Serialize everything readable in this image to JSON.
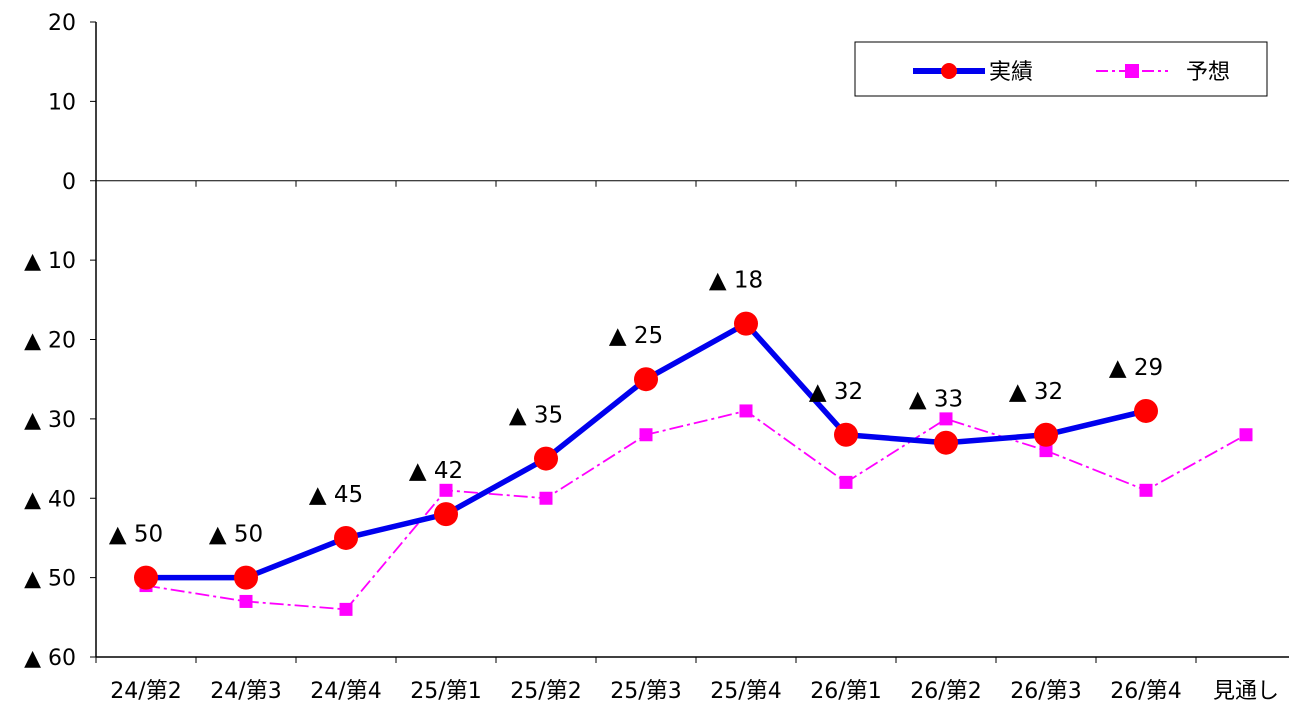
{
  "chart_data": {
    "type": "line",
    "title": "",
    "xlabel": "",
    "ylabel": "",
    "categories": [
      "24/第2",
      "24/第3",
      "24/第4",
      "25/第1",
      "25/第2",
      "25/第3",
      "25/第4",
      "26/第1",
      "26/第2",
      "26/第3",
      "26/第4",
      "見通し"
    ],
    "ylim": [
      -60,
      20
    ],
    "y_ticks": [
      20,
      10,
      0,
      -10,
      -20,
      -30,
      -40,
      -50,
      -60
    ],
    "y_tick_labels": [
      "20",
      "10",
      "0",
      "▲ 10",
      "▲ 20",
      "▲ 30",
      "▲ 40",
      "▲ 50",
      "▲ 60"
    ],
    "grid": false,
    "legend_position": "top-right",
    "series": [
      {
        "name": "実績",
        "color": "#0000ee",
        "marker": "circle",
        "marker_color": "#ff0000",
        "line_style": "solid",
        "values": [
          -50,
          -50,
          -45,
          -42,
          -35,
          -25,
          -18,
          -32,
          -33,
          -32,
          -29,
          null
        ],
        "data_labels": [
          "▲ 50",
          "▲ 50",
          "▲ 45",
          "▲ 42",
          "▲ 35",
          "▲ 25",
          "▲ 18",
          "▲ 32",
          "▲ 33",
          "▲ 32",
          "▲ 29",
          null
        ]
      },
      {
        "name": "予想",
        "color": "#ff00ff",
        "marker": "square",
        "marker_color": "#ff00ff",
        "line_style": "dash-dot",
        "values": [
          -51,
          -53,
          -54,
          -39,
          -40,
          -32,
          -29,
          -38,
          -30,
          -34,
          -39,
          -32
        ]
      }
    ]
  }
}
